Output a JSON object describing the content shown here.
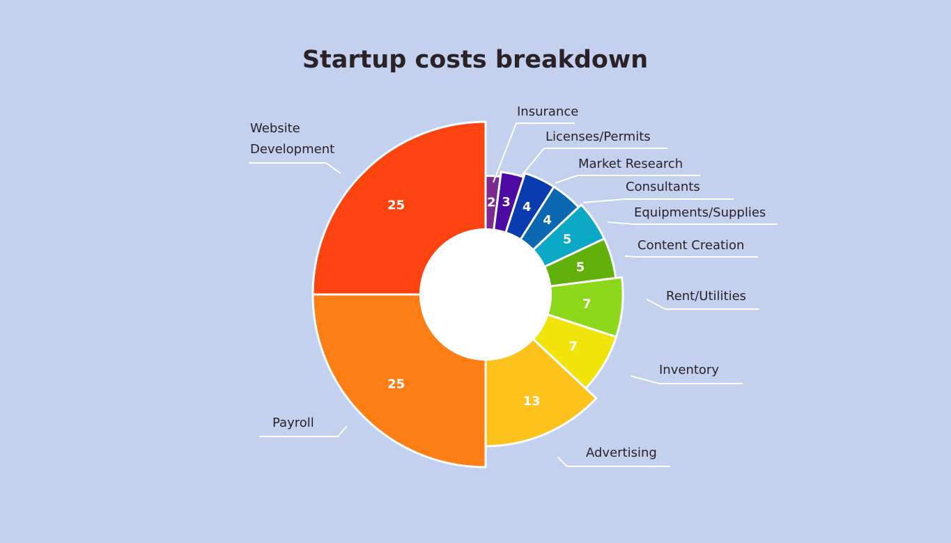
{
  "chart_data": {
    "type": "pie",
    "title": "Startup costs breakdown",
    "categories": [
      "Insurance",
      "Licenses/Permits",
      "Market Research",
      "Consultants",
      "Equipments/Supplies",
      "Content Creation",
      "Rent/Utilities",
      "Inventory",
      "Advertising",
      "Payroll",
      "Website Development"
    ],
    "label_lines": [
      [
        "Insurance"
      ],
      [
        "Licenses/Permits"
      ],
      [
        "Market Research"
      ],
      [
        "Consultants"
      ],
      [
        "Equipments/Supplies"
      ],
      [
        "Content Creation"
      ],
      [
        "Rent/Utilities"
      ],
      [
        "Inventory"
      ],
      [
        "Advertising"
      ],
      [
        "Payroll"
      ],
      [
        "Website",
        "Development"
      ]
    ],
    "values": [
      2,
      3,
      4,
      4,
      5,
      5,
      7,
      7,
      13,
      25,
      25
    ],
    "value_labels": [
      "2",
      "3",
      "4",
      "4",
      "5",
      "5",
      "7",
      "7",
      "13",
      "25",
      "25"
    ],
    "colors": [
      "#7b2b8e",
      "#4d0aa3",
      "#0a3cb0",
      "#0b68b0",
      "#0ca9c6",
      "#62b10a",
      "#8ed81b",
      "#f0e40a",
      "#fdc21b",
      "#fd7e14",
      "#fd4410"
    ],
    "style": "variable-radius donut (segment radius grows with value)",
    "legend": "none (labels placed around segments)"
  }
}
